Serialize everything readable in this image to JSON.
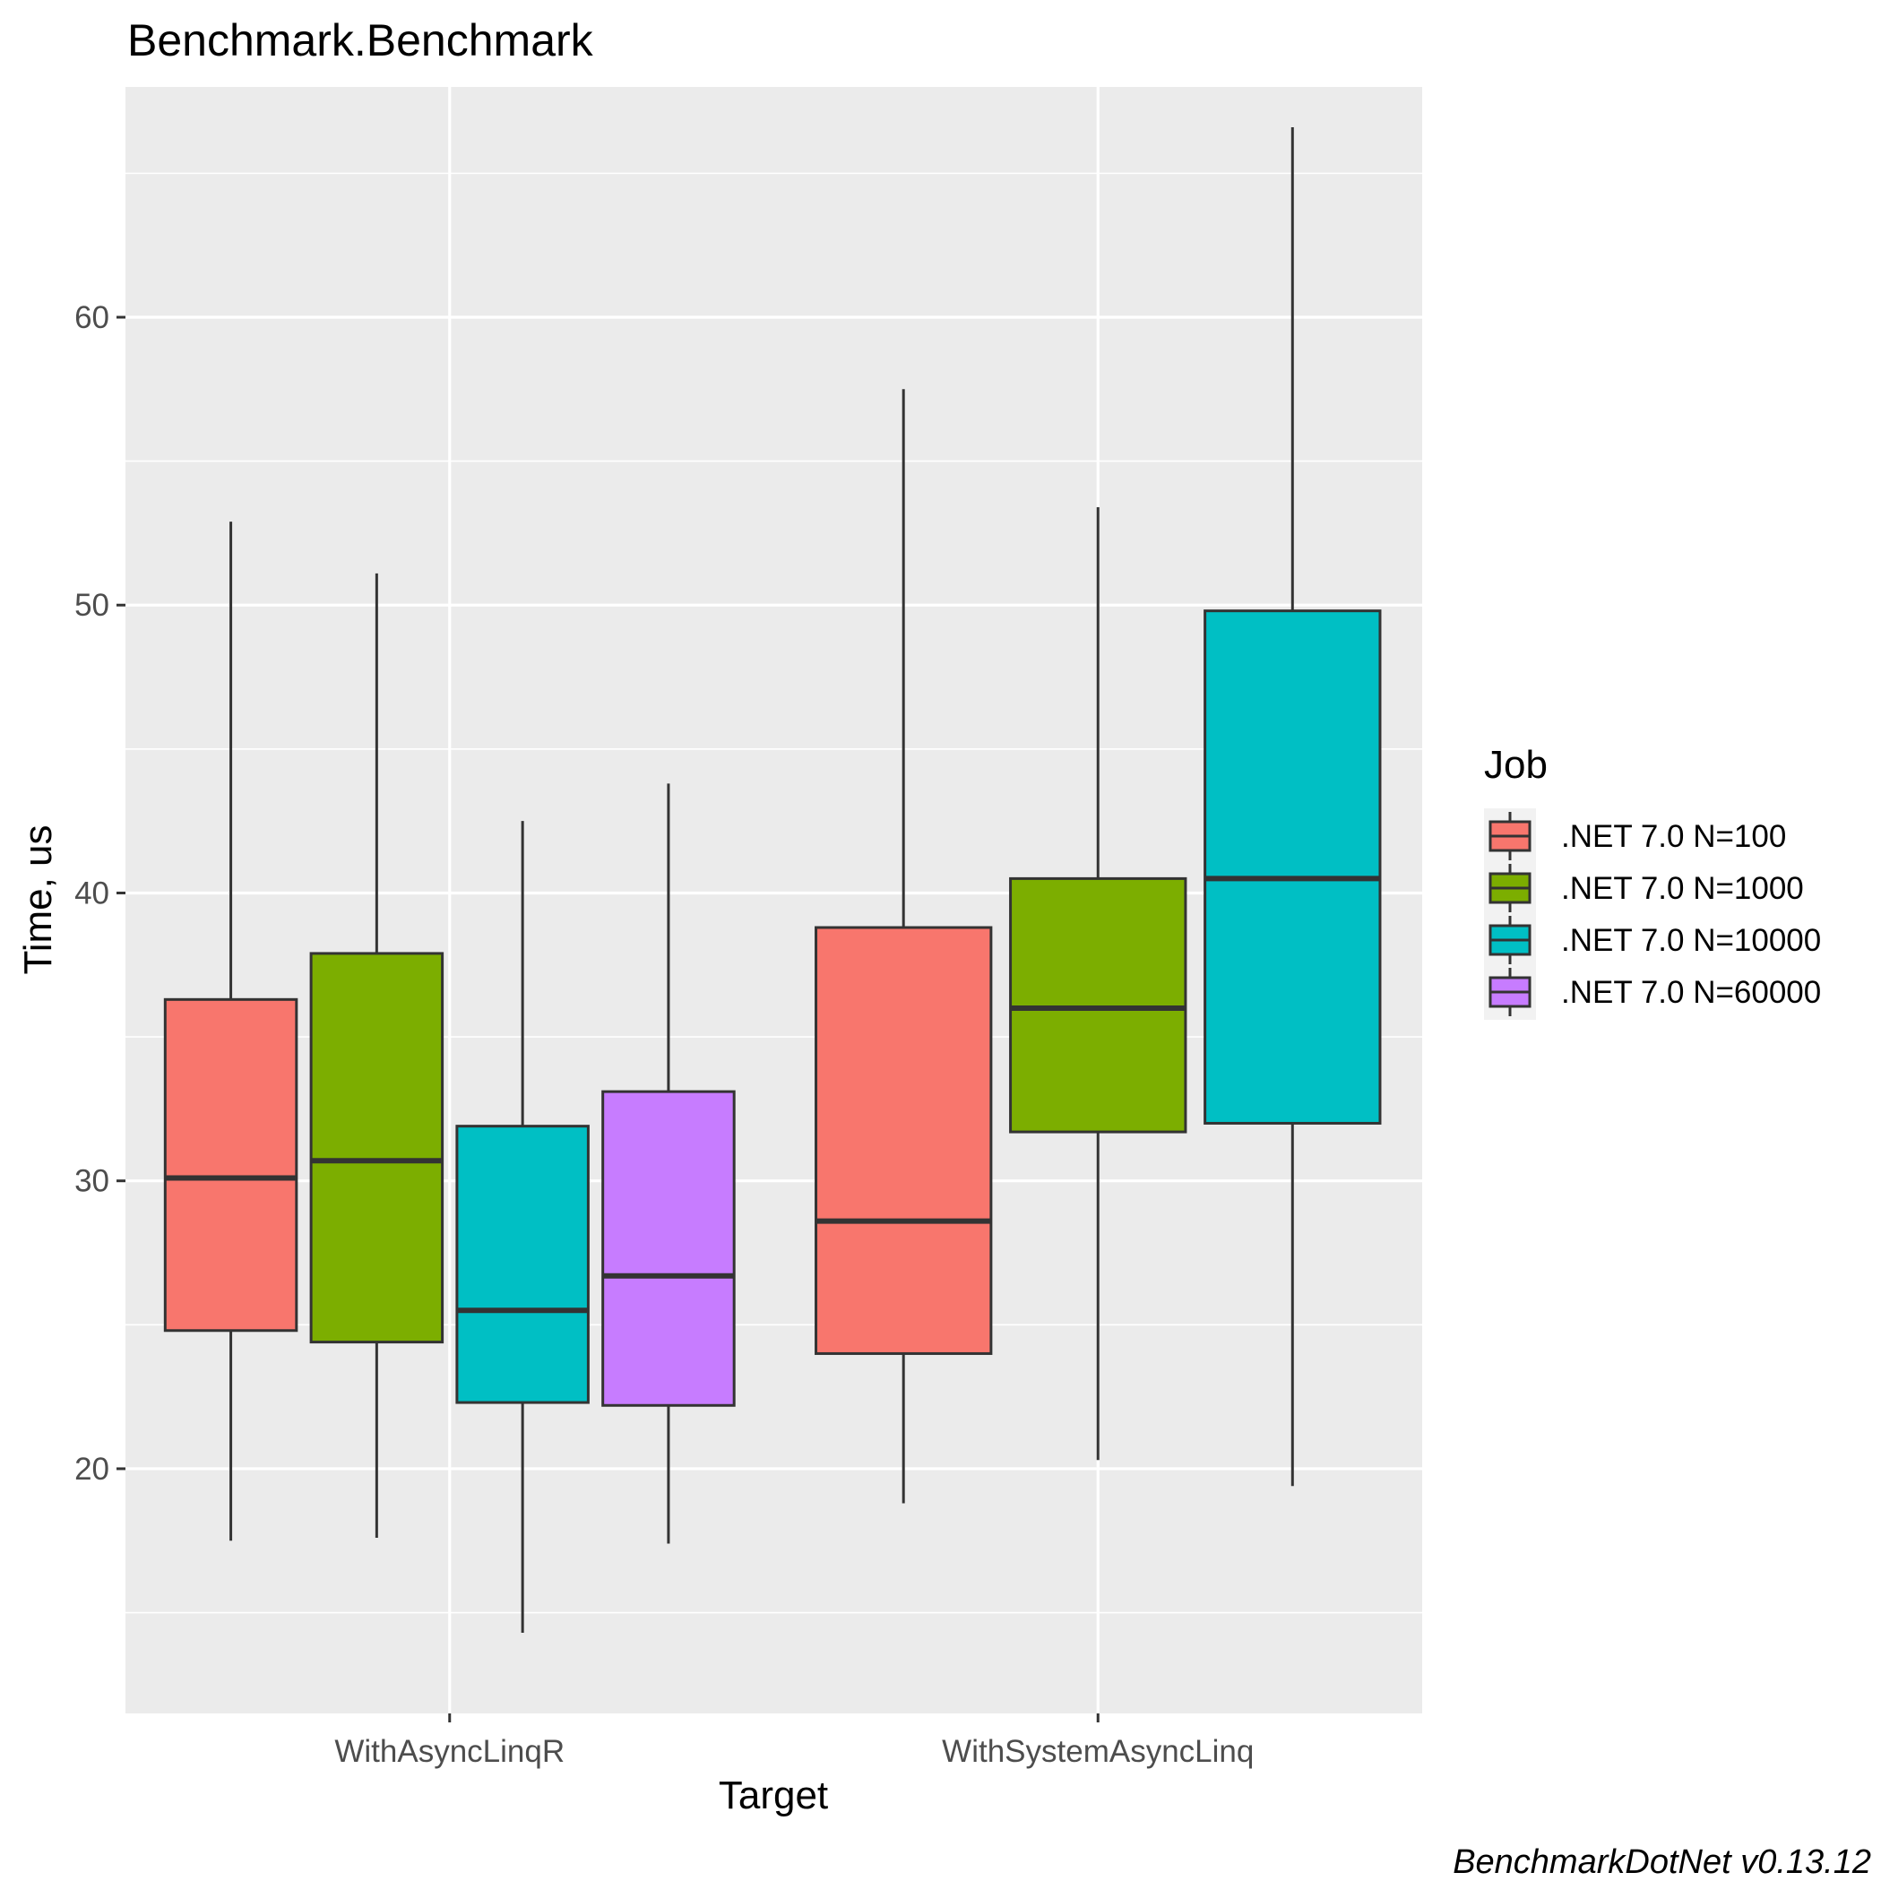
{
  "title": "Benchmark.Benchmark",
  "caption": "BenchmarkDotNet v0.13.12",
  "chart_data": {
    "type": "boxplot",
    "title": "Benchmark.Benchmark",
    "xlabel": "Target",
    "ylabel": "Time, us",
    "ylim": [
      11.5,
      68
    ],
    "y_ticks": [
      20,
      30,
      40,
      50,
      60
    ],
    "grid": true,
    "legend_placement": "right",
    "legend_title": "Job",
    "categories": [
      "WithAsyncLinqR",
      "WithSystemAsyncLinq"
    ],
    "series": [
      {
        "name": ".NET 7.0 N=100",
        "color": "#F8766D",
        "boxes": [
          {
            "category": "WithAsyncLinqR",
            "min": 17.5,
            "q1": 24.8,
            "median": 30.1,
            "q3": 36.3,
            "max": 52.9
          },
          {
            "category": "WithSystemAsyncLinq",
            "min": 18.8,
            "q1": 24.0,
            "median": 28.6,
            "q3": 38.8,
            "max": 57.5
          }
        ]
      },
      {
        "name": ".NET 7.0 N=1000",
        "color": "#7CAE00",
        "boxes": [
          {
            "category": "WithAsyncLinqR",
            "min": 17.6,
            "q1": 24.4,
            "median": 30.7,
            "q3": 37.9,
            "max": 51.1
          },
          {
            "category": "WithSystemAsyncLinq",
            "min": 20.3,
            "q1": 31.7,
            "median": 36.0,
            "q3": 40.5,
            "max": 53.4
          }
        ]
      },
      {
        "name": ".NET 7.0 N=10000",
        "color": "#00BFC4",
        "boxes": [
          {
            "category": "WithAsyncLinqR",
            "min": 14.3,
            "q1": 22.3,
            "median": 25.5,
            "q3": 31.9,
            "max": 42.5
          },
          {
            "category": "WithSystemAsyncLinq",
            "min": 19.4,
            "q1": 32.0,
            "median": 40.5,
            "q3": 49.8,
            "max": 66.6
          }
        ]
      },
      {
        "name": ".NET 7.0 N=60000",
        "color": "#C77CFF",
        "boxes": [
          {
            "category": "WithAsyncLinqR",
            "min": 17.4,
            "q1": 22.2,
            "median": 26.7,
            "q3": 33.1,
            "max": 43.8
          }
        ]
      }
    ]
  }
}
